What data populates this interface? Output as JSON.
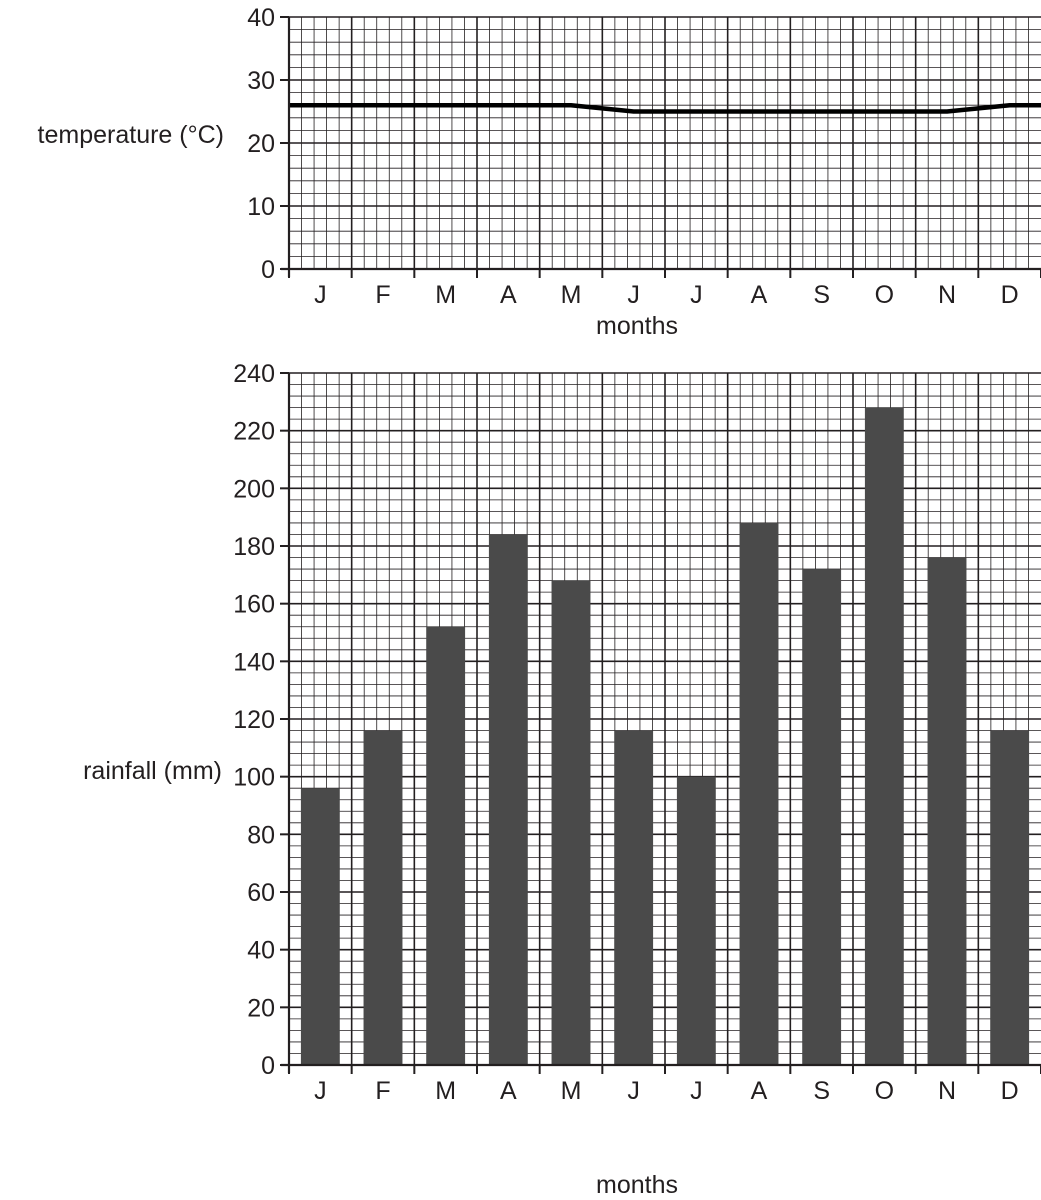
{
  "chart_data": [
    {
      "type": "line",
      "title": "",
      "xlabel": "months",
      "ylabel": "temperature (°C)",
      "categories": [
        "J",
        "F",
        "M",
        "A",
        "M",
        "J",
        "J",
        "A",
        "S",
        "O",
        "N",
        "D"
      ],
      "values": [
        26,
        26,
        26,
        26,
        26,
        25,
        25,
        25,
        25,
        25,
        25,
        26
      ],
      "ylim": [
        0,
        40
      ],
      "yticks": [
        "0",
        "10",
        "20",
        "30",
        "40"
      ],
      "grid": true,
      "line_color": "#000000"
    },
    {
      "type": "bar",
      "title": "",
      "xlabel": "months",
      "ylabel": "rainfall (mm)",
      "categories": [
        "J",
        "F",
        "M",
        "A",
        "M",
        "J",
        "J",
        "A",
        "S",
        "O",
        "N",
        "D"
      ],
      "values": [
        96,
        116,
        152,
        184,
        168,
        116,
        100,
        188,
        172,
        228,
        176,
        116
      ],
      "ylim": [
        0,
        240
      ],
      "yticks": [
        "0",
        "20",
        "40",
        "60",
        "80",
        "100",
        "120",
        "140",
        "160",
        "180",
        "200",
        "220",
        "240"
      ],
      "grid": true,
      "bar_color": "#4a4a4a"
    }
  ]
}
